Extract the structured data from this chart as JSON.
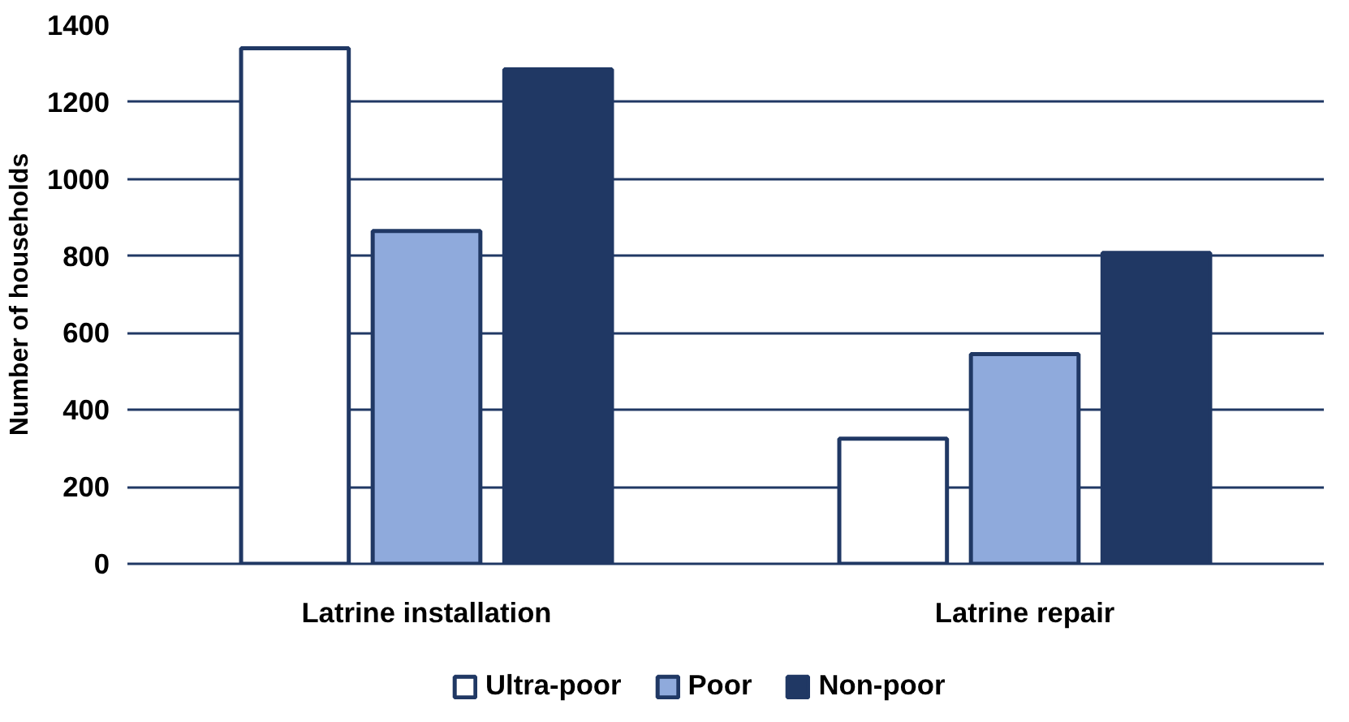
{
  "chart_data": {
    "type": "bar",
    "ylabel": "Number of households",
    "categories": [
      "Latrine installation",
      "Latrine repair"
    ],
    "series": [
      {
        "name": "Ultra-poor",
        "color": "#ffffff",
        "values": [
          1340,
          325
        ]
      },
      {
        "name": "Poor",
        "color": "#8faadc",
        "values": [
          865,
          545
        ]
      },
      {
        "name": "Non-poor",
        "color": "#203864",
        "values": [
          1285,
          808
        ]
      }
    ],
    "ylim": [
      0,
      1400
    ],
    "yticks": [
      0,
      200,
      400,
      600,
      800,
      1000,
      1200,
      1400
    ],
    "grid": "y",
    "legend": "bottom"
  }
}
